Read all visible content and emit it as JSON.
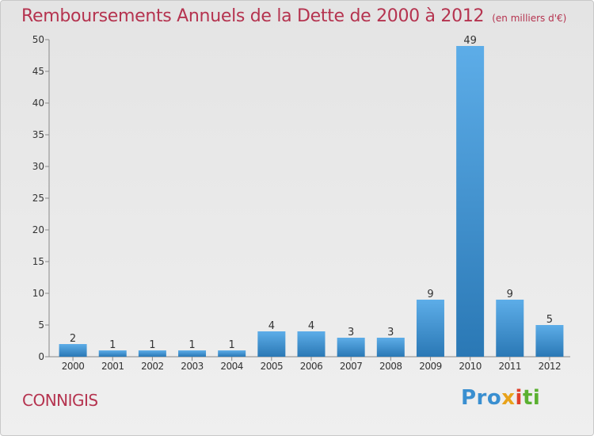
{
  "header": {
    "title": "Remboursements Annuels de la Dette de 2000 à 2012",
    "unit": "(en milliers d'€)"
  },
  "footer": {
    "commune": "CONNIGIS",
    "logo_parts": [
      "Pro",
      "x",
      "i",
      "ti"
    ]
  },
  "chart_data": {
    "type": "bar",
    "title": "Remboursements Annuels de la Dette de 2000 à 2012",
    "subtitle": "(en milliers d'€)",
    "categories": [
      "2000",
      "2001",
      "2002",
      "2003",
      "2004",
      "2005",
      "2006",
      "2007",
      "2008",
      "2009",
      "2010",
      "2011",
      "2012"
    ],
    "values": [
      2,
      1,
      1,
      1,
      1,
      4,
      4,
      3,
      3,
      9,
      49,
      9,
      5
    ],
    "ylim": [
      0,
      50
    ],
    "yticks": [
      0,
      5,
      10,
      15,
      20,
      25,
      30,
      35,
      40,
      45,
      50
    ],
    "grid": false,
    "colors": {
      "bar_light": "#5dade8",
      "bar_dark": "#2a78b5",
      "text": "#333333",
      "title": "#b5334f"
    }
  }
}
